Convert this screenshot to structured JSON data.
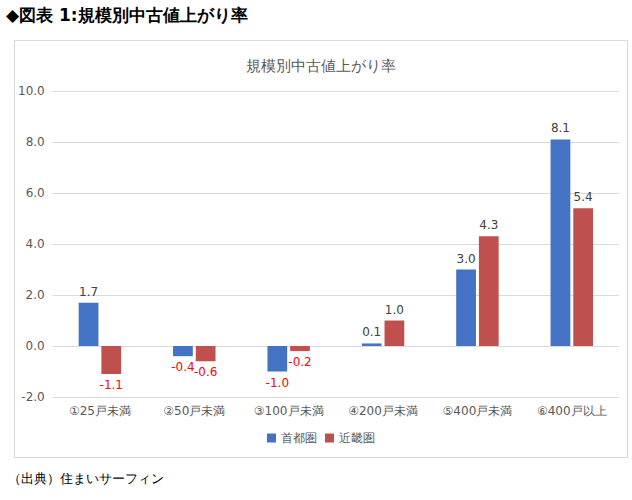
{
  "header": "◆図表 1:規模別中古値上がり率",
  "source": "（出典）住まいサーフィン",
  "chart_data": {
    "type": "bar",
    "title": "規模別中古値上がり率",
    "categories": [
      "①25戸未満",
      "②50戸未満",
      "③100戸未満",
      "④200戸未満",
      "⑤400戸未満",
      "⑥400戸以上"
    ],
    "series": [
      {
        "name": "首都圏",
        "color": "#4472c4",
        "values": [
          1.7,
          -0.4,
          -1.0,
          0.1,
          3.0,
          8.1
        ],
        "value_labels": [
          "1.7",
          "-0.4",
          "-1.0",
          "0.1",
          "3.0",
          "8.1"
        ]
      },
      {
        "name": "近畿圏",
        "color": "#c0504d",
        "values": [
          -1.1,
          -0.6,
          -0.2,
          1.0,
          4.3,
          5.4
        ],
        "value_labels": [
          "-1.1",
          "-0.6",
          "-0.2",
          "1.0",
          "4.3",
          "5.4"
        ]
      }
    ],
    "ylim": [
      -2,
      10
    ],
    "yticks": [
      {
        "value": -2,
        "label": "-2.0"
      },
      {
        "value": 0,
        "label": "0.0"
      },
      {
        "value": 2,
        "label": "2.0"
      },
      {
        "value": 4,
        "label": "4.0"
      },
      {
        "value": 6,
        "label": "6.0"
      },
      {
        "value": 8,
        "label": "8.0"
      },
      {
        "value": 10,
        "label": "10.0"
      }
    ],
    "grid": true,
    "legend": "bottom",
    "data_labels": true
  }
}
